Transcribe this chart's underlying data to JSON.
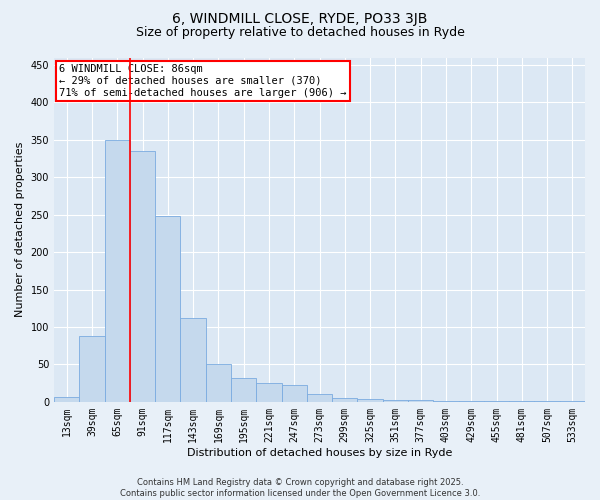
{
  "title_line1": "6, WINDMILL CLOSE, RYDE, PO33 3JB",
  "title_line2": "Size of property relative to detached houses in Ryde",
  "xlabel": "Distribution of detached houses by size in Ryde",
  "ylabel": "Number of detached properties",
  "categories": [
    "13sqm",
    "39sqm",
    "65sqm",
    "91sqm",
    "117sqm",
    "143sqm",
    "169sqm",
    "195sqm",
    "221sqm",
    "247sqm",
    "273sqm",
    "299sqm",
    "325sqm",
    "351sqm",
    "377sqm",
    "403sqm",
    "429sqm",
    "455sqm",
    "481sqm",
    "507sqm",
    "533sqm"
  ],
  "values": [
    6,
    88,
    350,
    335,
    248,
    112,
    50,
    32,
    25,
    22,
    10,
    5,
    4,
    3,
    2,
    1,
    1,
    1,
    1,
    1,
    1
  ],
  "bar_color": "#c5d9ed",
  "bar_edge_color": "#7aabe0",
  "bar_edge_width": 0.6,
  "red_line_x": 2.5,
  "annotation_line1": "6 WINDMILL CLOSE: 86sqm",
  "annotation_line2": "← 29% of detached houses are smaller (370)",
  "annotation_line3": "71% of semi-detached houses are larger (906) →",
  "ylim": [
    0,
    460
  ],
  "yticks": [
    0,
    50,
    100,
    150,
    200,
    250,
    300,
    350,
    400,
    450
  ],
  "footer_line1": "Contains HM Land Registry data © Crown copyright and database right 2025.",
  "footer_line2": "Contains public sector information licensed under the Open Government Licence 3.0.",
  "bg_color": "#e8f0f8",
  "plot_bg_color": "#dce8f4",
  "grid_color": "#ffffff",
  "title_fontsize": 10,
  "subtitle_fontsize": 9,
  "tick_fontsize": 7,
  "axis_label_fontsize": 8,
  "footer_fontsize": 6,
  "annotation_fontsize": 7.5
}
